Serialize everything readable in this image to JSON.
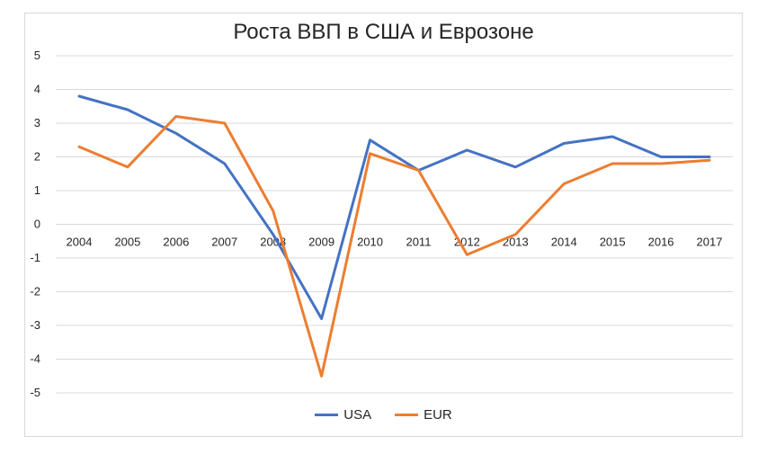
{
  "chart_data": {
    "type": "line",
    "title": "Роста ВВП в США и Еврозоне",
    "categories": [
      "2004",
      "2005",
      "2006",
      "2007",
      "2008",
      "2009",
      "2010",
      "2011",
      "2012",
      "2013",
      "2014",
      "2015",
      "2016",
      "2017"
    ],
    "series": [
      {
        "name": "USA",
        "color": "#4472c4",
        "values": [
          3.8,
          3.4,
          2.7,
          1.8,
          -0.3,
          -2.8,
          2.5,
          1.6,
          2.2,
          1.7,
          2.4,
          2.6,
          2.0,
          2.0
        ]
      },
      {
        "name": "EUR",
        "color": "#ed7d31",
        "values": [
          2.3,
          1.7,
          3.2,
          3.0,
          0.4,
          -4.5,
          2.1,
          1.6,
          -0.9,
          -0.3,
          1.2,
          1.8,
          1.8,
          1.9
        ]
      }
    ],
    "yticks": [
      "5",
      "4",
      "3",
      "2",
      "1",
      "0",
      "-1",
      "-2",
      "-3",
      "-4",
      "-5"
    ],
    "ylim": [
      -5,
      5
    ],
    "grid": true,
    "legend_position": "bottom"
  }
}
